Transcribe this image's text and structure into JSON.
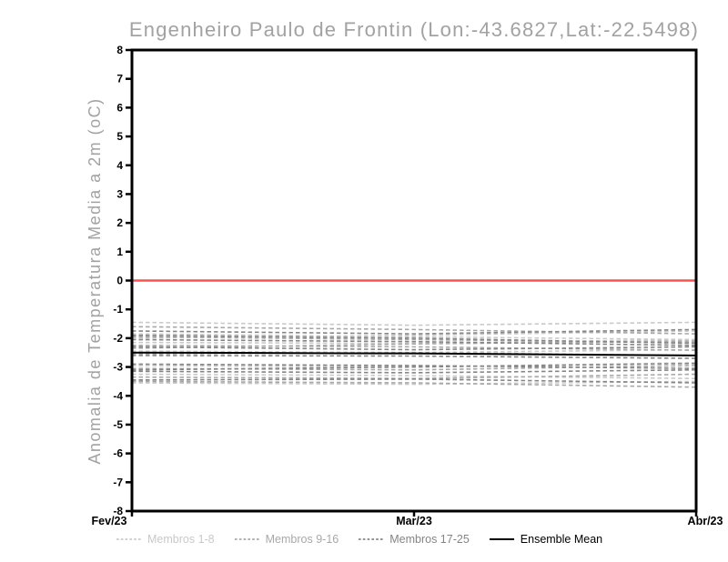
{
  "chart_data": {
    "type": "line",
    "title": "Engenheiro Paulo de Frontin (Lon:-43.6827,Lat:-22.5498)",
    "ylabel": "Anomalia de Temperatura Media a 2m (oC)",
    "xlabel": "",
    "ylim": [
      -8,
      8
    ],
    "y_ticks": [
      8,
      7,
      6,
      5,
      4,
      3,
      2,
      1,
      0,
      -1,
      -2,
      -3,
      -4,
      -5,
      -6,
      -7,
      -8
    ],
    "x_ticks": [
      "Fev/23",
      "Mar/23",
      "Abr/23"
    ],
    "x": [
      0,
      0.5,
      1
    ],
    "grid": false,
    "zero_line": {
      "value": 0,
      "color": "#f9534e"
    },
    "axis_color": "#000000",
    "series_groups": [
      {
        "name": "Membros 1-8",
        "color": "#c9c9c9",
        "style": "dashed",
        "members": [
          [
            -1.45,
            -1.55,
            -1.45
          ],
          [
            -1.85,
            -1.95,
            -2.05
          ],
          [
            -2.15,
            -2.18,
            -2.05
          ],
          [
            -2.45,
            -2.5,
            -2.4
          ],
          [
            -2.95,
            -3.0,
            -2.85
          ],
          [
            -3.25,
            -3.3,
            -3.4
          ],
          [
            -3.55,
            -3.6,
            -3.5
          ],
          [
            -2.0,
            -1.9,
            -1.75
          ]
        ]
      },
      {
        "name": "Membros 9-16",
        "color": "#a8a8a8",
        "style": "dashed",
        "members": [
          [
            -1.6,
            -1.7,
            -1.85
          ],
          [
            -1.95,
            -2.05,
            -2.15
          ],
          [
            -2.25,
            -2.3,
            -2.42
          ],
          [
            -2.55,
            -2.5,
            -2.6
          ],
          [
            -3.05,
            -3.1,
            -2.95
          ],
          [
            -3.35,
            -3.4,
            -3.25
          ],
          [
            -3.5,
            -3.55,
            -3.7
          ],
          [
            -2.35,
            -2.2,
            -2.1
          ]
        ]
      },
      {
        "name": "Membros 17-25",
        "color": "#858585",
        "style": "dashed",
        "members": [
          [
            -1.75,
            -1.85,
            -1.7
          ],
          [
            -2.05,
            -2.12,
            -2.25
          ],
          [
            -2.3,
            -2.4,
            -2.3
          ],
          [
            -2.6,
            -2.62,
            -2.7
          ],
          [
            -2.9,
            -2.95,
            -3.05
          ],
          [
            -3.15,
            -3.2,
            -3.1
          ],
          [
            -3.45,
            -3.42,
            -3.55
          ],
          [
            -1.9,
            -2.0,
            -2.18
          ],
          [
            -3.1,
            -3.0,
            -2.88
          ]
        ]
      },
      {
        "name": "Ensemble Mean",
        "color": "#000000",
        "style": "solid",
        "members": [
          [
            -2.5,
            -2.53,
            -2.6
          ]
        ]
      }
    ],
    "legend_position": "bottom"
  },
  "legend": {
    "items": [
      {
        "label": "Membros 1-8",
        "color": "#c9c9c9",
        "style": "dashed"
      },
      {
        "label": "Membros 9-16",
        "color": "#a8a8a8",
        "style": "dashed"
      },
      {
        "label": "Membros 17-25",
        "color": "#858585",
        "style": "dashed"
      },
      {
        "label": "Ensemble Mean",
        "color": "#000000",
        "style": "solid"
      }
    ]
  }
}
